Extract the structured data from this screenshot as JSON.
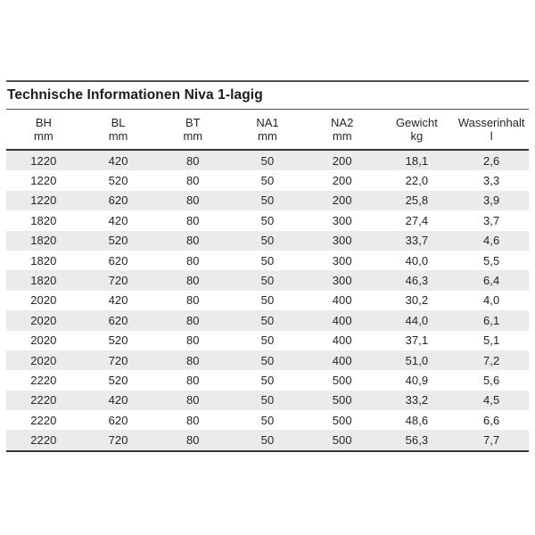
{
  "page": {
    "background": "#ffffff"
  },
  "table": {
    "title": "Technische Informationen Niva 1-lagig",
    "columns": [
      {
        "label": "BH",
        "unit": "mm"
      },
      {
        "label": "BL",
        "unit": "mm"
      },
      {
        "label": "BT",
        "unit": "mm"
      },
      {
        "label": "NA1",
        "unit": "mm"
      },
      {
        "label": "NA2",
        "unit": "mm"
      },
      {
        "label": "Gewicht",
        "unit": "kg"
      },
      {
        "label": "Wasserinhalt",
        "unit": "l"
      }
    ],
    "rows": [
      [
        "1220",
        "420",
        "80",
        "50",
        "200",
        "18,1",
        "2,6"
      ],
      [
        "1220",
        "520",
        "80",
        "50",
        "200",
        "22,0",
        "3,3"
      ],
      [
        "1220",
        "620",
        "80",
        "50",
        "200",
        "25,8",
        "3,9"
      ],
      [
        "1820",
        "420",
        "80",
        "50",
        "300",
        "27,4",
        "3,7"
      ],
      [
        "1820",
        "520",
        "80",
        "50",
        "300",
        "33,7",
        "4,6"
      ],
      [
        "1820",
        "620",
        "80",
        "50",
        "300",
        "40,0",
        "5,5"
      ],
      [
        "1820",
        "720",
        "80",
        "50",
        "300",
        "46,3",
        "6,4"
      ],
      [
        "2020",
        "420",
        "80",
        "50",
        "400",
        "30,2",
        "4,0"
      ],
      [
        "2020",
        "620",
        "80",
        "50",
        "400",
        "44,0",
        "6,1"
      ],
      [
        "2020",
        "520",
        "80",
        "50",
        "400",
        "37,1",
        "5,1"
      ],
      [
        "2020",
        "720",
        "80",
        "50",
        "400",
        "51,0",
        "7,2"
      ],
      [
        "2220",
        "520",
        "80",
        "50",
        "500",
        "40,9",
        "5,6"
      ],
      [
        "2220",
        "420",
        "80",
        "50",
        "500",
        "33,2",
        "4,5"
      ],
      [
        "2220",
        "620",
        "80",
        "50",
        "500",
        "48,6",
        "6,6"
      ],
      [
        "2220",
        "720",
        "80",
        "50",
        "500",
        "56,3",
        "7,7"
      ]
    ],
    "colors": {
      "stripe": "#ebebeb",
      "rule_thin": "#4e4f53",
      "rule_strong": "#343539",
      "title_text": "#1a1b1d",
      "cell_text": "#242528"
    }
  }
}
